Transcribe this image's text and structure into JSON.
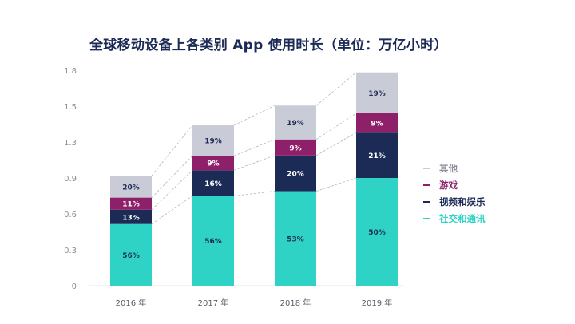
{
  "chart_data": {
    "type": "bar",
    "stacked": true,
    "title": "全球移动设备上各类别 App 使用时长（单位：万亿小时）",
    "categories": [
      "2016 年",
      "2017 年",
      "2018 年",
      "2019 年"
    ],
    "totals": [
      0.92,
      1.34,
      1.49,
      1.8
    ],
    "yticks": [
      "0",
      "0.3",
      "0.6",
      "0.9",
      "1.3",
      "1.5",
      "1.8"
    ],
    "ylim": [
      0,
      1.8
    ],
    "series": [
      {
        "name": "社交和通讯",
        "color": "#2fd3c5",
        "label_color": "#1c2b55",
        "labels": [
          "56%",
          "56%",
          "53%",
          "50%"
        ]
      },
      {
        "name": "视频和娱乐",
        "color": "#1c2b55",
        "label_color": "#ffffff",
        "labels": [
          "13%",
          "16%",
          "20%",
          "21%"
        ]
      },
      {
        "name": "游戏",
        "color": "#8e2069",
        "label_color": "#ffffff",
        "labels": [
          "11%",
          "9%",
          "9%",
          "9%"
        ]
      },
      {
        "name": "其他",
        "color": "#c9ccd6",
        "label_color": "#1c2b55",
        "labels": [
          "20%",
          "19%",
          "19%",
          "19%"
        ]
      }
    ],
    "legend_order": [
      3,
      2,
      1,
      0
    ],
    "legend_position": "right",
    "legend_text_colors": [
      "#8a8f99",
      "#8e2069",
      "#1c2b55",
      "#2fd3c5"
    ],
    "connector_lines": "dashed"
  }
}
